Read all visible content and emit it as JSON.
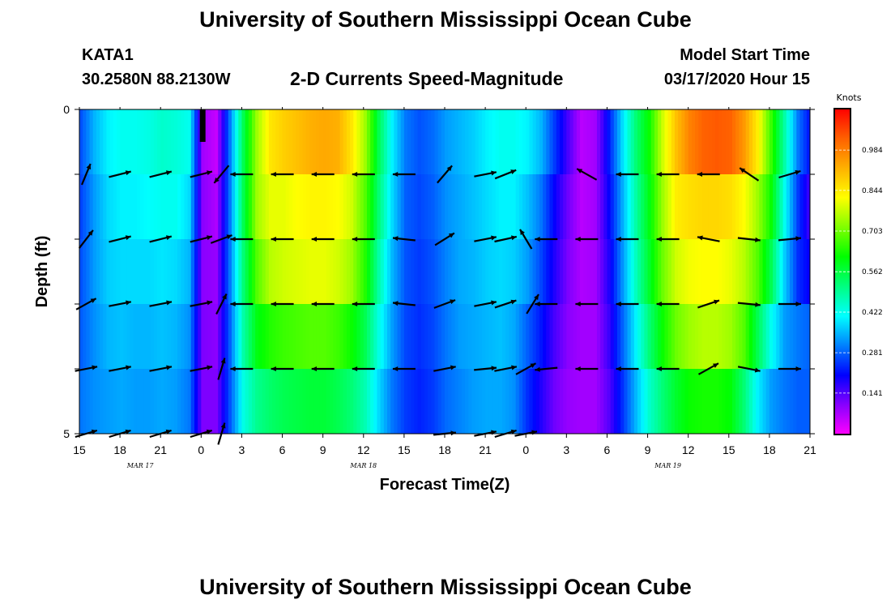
{
  "titles": {
    "main": "University of Southern Mississippi Ocean Cube",
    "footer": "University of Southern Mississippi Ocean Cube",
    "station_id": "KATA1",
    "station_coords": "30.2580N 88.2130W",
    "subtitle": "2-D Currents Speed-Magnitude",
    "model_start_label": "Model Start Time",
    "model_start_value": "03/17/2020 Hour 15"
  },
  "colors": {
    "scale": [
      "#ff00ff",
      "#8800ff",
      "#0000ff",
      "#0080ff",
      "#00ffff",
      "#00ff80",
      "#00ff00",
      "#80ff00",
      "#ffff00",
      "#ffb000",
      "#ff6000",
      "#ff0000"
    ]
  },
  "chart_data": {
    "type": "heatmap",
    "title": "2-D Currents Speed-Magnitude",
    "xlabel": "Forecast Time(Z)",
    "ylabel": "Depth (ft)",
    "x_unit": "hours since 03/17/2020 15Z",
    "xlim": [
      0,
      54
    ],
    "ylim": [
      0,
      5
    ],
    "x_ticks": [
      0,
      3,
      6,
      9,
      12,
      15,
      18,
      21,
      24,
      27,
      30,
      33,
      36,
      39,
      42,
      45,
      48,
      51,
      54
    ],
    "x_tick_labels": [
      "15",
      "18",
      "21",
      "0",
      "3",
      "6",
      "9",
      "12",
      "15",
      "18",
      "21",
      "0",
      "3",
      "6",
      "9",
      "12",
      "15",
      "18",
      "21"
    ],
    "y_ticks": [
      0,
      1,
      2,
      3,
      4,
      5
    ],
    "y_tick_labels": [
      "0",
      "",
      "",
      "",
      "",
      "5"
    ],
    "date_labels": [
      {
        "x": 4.5,
        "text": "MAR 17"
      },
      {
        "x": 21,
        "text": "MAR 18"
      },
      {
        "x": 43.5,
        "text": "MAR 19"
      }
    ],
    "colorbar": {
      "title": "Knots",
      "min": 0.0,
      "max": 1.125,
      "ticks": [
        "0.141",
        "0.281",
        "0.422",
        "0.562",
        "0.703",
        "0.844",
        "0.984"
      ],
      "tick_values": [
        0.141,
        0.281,
        0.422,
        0.562,
        0.703,
        0.844,
        0.984
      ]
    },
    "depth_levels": [
      0,
      1,
      2,
      3,
      4
    ],
    "speed_profile": {
      "hours": [
        0,
        1,
        2,
        3,
        4,
        5,
        6,
        7,
        8,
        9,
        10,
        11,
        12,
        13,
        14,
        15,
        16,
        17,
        18,
        19,
        20,
        21,
        22,
        23,
        24,
        25,
        26,
        27,
        28,
        29,
        30,
        31,
        32,
        33,
        34,
        35,
        36,
        37,
        38,
        39,
        40,
        41,
        42,
        43,
        44,
        45,
        46,
        47,
        48,
        49,
        50,
        51,
        52,
        53,
        54
      ],
      "speeds": [
        [
          0.27,
          0.35,
          0.4,
          0.42,
          0.42,
          0.43,
          0.45,
          0.44,
          0.42,
          0.08,
          0.05,
          0.3,
          0.55,
          0.74,
          0.85,
          0.88,
          0.9,
          0.92,
          0.93,
          0.92,
          0.85,
          0.74,
          0.55,
          0.4,
          0.3,
          0.27,
          0.29,
          0.33,
          0.35,
          0.37,
          0.4,
          0.42,
          0.42,
          0.4,
          0.35,
          0.25,
          0.15,
          0.06,
          0.08,
          0.22,
          0.38,
          0.52,
          0.62,
          0.78,
          0.9,
          0.98,
          1.02,
          1.03,
          1.02,
          0.95,
          0.84,
          0.66,
          0.48,
          0.3,
          0.2
        ],
        [
          0.26,
          0.33,
          0.38,
          0.4,
          0.4,
          0.41,
          0.42,
          0.42,
          0.38,
          0.1,
          0.07,
          0.3,
          0.55,
          0.74,
          0.8,
          0.8,
          0.82,
          0.83,
          0.83,
          0.82,
          0.78,
          0.68,
          0.52,
          0.38,
          0.28,
          0.26,
          0.28,
          0.32,
          0.34,
          0.36,
          0.38,
          0.4,
          0.4,
          0.36,
          0.3,
          0.2,
          0.12,
          0.06,
          0.08,
          0.2,
          0.34,
          0.48,
          0.6,
          0.74,
          0.84,
          0.86,
          0.87,
          0.87,
          0.86,
          0.82,
          0.74,
          0.62,
          0.42,
          0.25,
          0.14
        ],
        [
          0.27,
          0.33,
          0.37,
          0.38,
          0.38,
          0.38,
          0.39,
          0.38,
          0.35,
          0.1,
          0.09,
          0.3,
          0.52,
          0.68,
          0.76,
          0.78,
          0.79,
          0.8,
          0.8,
          0.78,
          0.74,
          0.64,
          0.48,
          0.35,
          0.27,
          0.25,
          0.27,
          0.31,
          0.34,
          0.35,
          0.37,
          0.38,
          0.37,
          0.33,
          0.26,
          0.18,
          0.11,
          0.07,
          0.08,
          0.18,
          0.32,
          0.46,
          0.58,
          0.7,
          0.78,
          0.81,
          0.82,
          0.82,
          0.8,
          0.76,
          0.68,
          0.55,
          0.37,
          0.24,
          0.19
        ],
        [
          0.28,
          0.32,
          0.35,
          0.36,
          0.35,
          0.35,
          0.36,
          0.35,
          0.32,
          0.11,
          0.1,
          0.28,
          0.48,
          0.6,
          0.64,
          0.66,
          0.67,
          0.68,
          0.68,
          0.66,
          0.62,
          0.55,
          0.43,
          0.33,
          0.26,
          0.24,
          0.26,
          0.3,
          0.33,
          0.34,
          0.35,
          0.36,
          0.34,
          0.28,
          0.22,
          0.15,
          0.1,
          0.08,
          0.08,
          0.16,
          0.28,
          0.4,
          0.52,
          0.62,
          0.7,
          0.74,
          0.76,
          0.76,
          0.74,
          0.68,
          0.55,
          0.42,
          0.33,
          0.3,
          0.28
        ],
        [
          0.3,
          0.32,
          0.33,
          0.34,
          0.33,
          0.33,
          0.34,
          0.33,
          0.3,
          0.11,
          0.11,
          0.27,
          0.43,
          0.5,
          0.53,
          0.55,
          0.56,
          0.57,
          0.57,
          0.55,
          0.52,
          0.47,
          0.38,
          0.3,
          0.25,
          0.23,
          0.25,
          0.29,
          0.31,
          0.33,
          0.34,
          0.34,
          0.32,
          0.24,
          0.18,
          0.12,
          0.09,
          0.08,
          0.08,
          0.14,
          0.24,
          0.35,
          0.45,
          0.52,
          0.58,
          0.62,
          0.63,
          0.63,
          0.61,
          0.52,
          0.4,
          0.33,
          0.3,
          0.28,
          0.28
        ]
      ]
    },
    "vectors": [
      {
        "row": 0,
        "hours": [
          4.5,
          7.5,
          10.5,
          13.5,
          16.5,
          19.5,
          22.5,
          25.5,
          28.5,
          31.5,
          34.5,
          37.5,
          40.5,
          43.5,
          46.5,
          49.5,
          52.5
        ],
        "u": [
          0,
          0,
          0,
          0,
          0,
          0,
          0,
          0,
          0,
          0,
          0,
          0,
          0,
          0,
          0,
          0,
          0
        ],
        "v": [
          0,
          0,
          0,
          0,
          0,
          0,
          0,
          0,
          0,
          0,
          0,
          0,
          0,
          0,
          0,
          0,
          0
        ]
      },
      {
        "row": 1,
        "hours": [
          0.5,
          3,
          6,
          9,
          10.5,
          12,
          15,
          18,
          21,
          24,
          27,
          30,
          31.5,
          34.5,
          37.5,
          40.5,
          43.5,
          46.5,
          49.5,
          52.5
        ],
        "u": [
          0.5,
          1.0,
          1.0,
          1.0,
          -0.5,
          -1.0,
          -1.0,
          -1.0,
          -1.0,
          -0.9,
          0.6,
          1.0,
          0.5,
          0.0,
          -0.9,
          -1.0,
          -1.0,
          -1.0,
          -0.9,
          1.0
        ],
        "v": [
          1.2,
          0.25,
          0.25,
          0.25,
          -0.6,
          0.0,
          0.0,
          0.0,
          0.0,
          0.0,
          0.7,
          0.2,
          0.2,
          0.0,
          0.5,
          0.0,
          0.0,
          0.0,
          0.6,
          0.3
        ]
      },
      {
        "row": 2,
        "hours": [
          0.5,
          3,
          6,
          9,
          10.5,
          12,
          15,
          18,
          21,
          24,
          27,
          30,
          31.5,
          33,
          34.5,
          37.5,
          40.5,
          43.5,
          46.5,
          49.5,
          52.5
        ],
        "u": [
          0.7,
          1.0,
          1.0,
          1.0,
          0.8,
          -1.0,
          -1.0,
          -1.0,
          -1.0,
          -0.9,
          0.8,
          1.0,
          0.9,
          -0.6,
          -0.9,
          -1.0,
          -1.0,
          -1.0,
          -1.0,
          0.9,
          1.0
        ],
        "v": [
          0.9,
          0.25,
          0.25,
          0.25,
          0.3,
          0.0,
          0.0,
          0.0,
          0.0,
          0.1,
          0.5,
          0.2,
          0.2,
          1.0,
          0.0,
          0.0,
          0.0,
          0.0,
          0.2,
          -0.1,
          0.1
        ]
      },
      {
        "row": 3,
        "hours": [
          0.5,
          3,
          6,
          9,
          10.5,
          12,
          15,
          18,
          21,
          24,
          27,
          30,
          31.5,
          33.5,
          34.5,
          37.5,
          40.5,
          43.5,
          46.5,
          49.5,
          52.5
        ],
        "u": [
          0.9,
          1.0,
          1.0,
          1.0,
          0.5,
          -1.0,
          -1.0,
          -1.0,
          -1.0,
          -0.9,
          0.8,
          1.0,
          0.9,
          0.5,
          -1.0,
          -1.0,
          -1.0,
          -1.0,
          0.9,
          1.0,
          1.0
        ],
        "v": [
          0.5,
          0.2,
          0.2,
          0.2,
          1.0,
          0.0,
          0.0,
          0.0,
          0.0,
          0.1,
          0.3,
          0.2,
          0.3,
          0.8,
          0.0,
          0.0,
          0.0,
          0.0,
          0.3,
          -0.1,
          0.0
        ]
      },
      {
        "row": 4,
        "hours": [
          0.5,
          3,
          6,
          9,
          10.5,
          12,
          15,
          18,
          21,
          24,
          27,
          30,
          31.5,
          33,
          34.5,
          37.5,
          40.5,
          43.5,
          46.5,
          49.5,
          52.5
        ],
        "u": [
          1.0,
          1.0,
          1.0,
          1.0,
          0.3,
          -1.0,
          -1.0,
          -1.0,
          -1.0,
          -1.0,
          1.0,
          1.0,
          1.0,
          0.9,
          -1.0,
          -1.0,
          -1.0,
          -1.0,
          0.9,
          1.0,
          1.0
        ],
        "v": [
          0.2,
          0.2,
          0.2,
          0.2,
          1.0,
          0.0,
          0.0,
          0.0,
          0.0,
          0.0,
          0.2,
          0.1,
          0.2,
          0.5,
          -0.1,
          0.0,
          0.0,
          0.0,
          0.5,
          -0.2,
          0.0
        ]
      },
      {
        "row": 5,
        "hours": [
          0.5,
          3,
          6,
          9,
          10.5,
          12,
          15,
          18,
          21,
          24,
          27,
          30,
          31.5,
          33,
          34.5,
          37.5,
          40.5,
          43.5,
          46.5,
          49.5,
          52.5
        ],
        "u": [
          1.0,
          1.0,
          1.0,
          1.0,
          0.3,
          0,
          0,
          0,
          0,
          0,
          1.0,
          1.0,
          1.0,
          1.0,
          0,
          0,
          0,
          0,
          0,
          0,
          0
        ],
        "v": [
          0.3,
          0.3,
          0.3,
          0.3,
          1.0,
          0,
          0,
          0,
          0,
          0,
          0.1,
          0.2,
          0.3,
          0.2,
          0,
          0,
          0,
          0,
          0,
          0,
          0
        ]
      }
    ]
  }
}
